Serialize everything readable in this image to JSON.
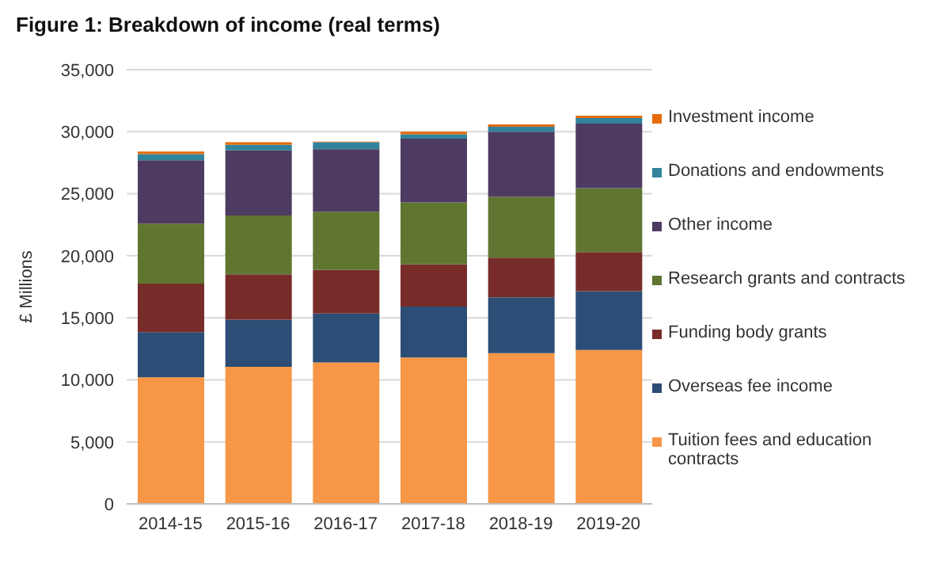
{
  "chart_data": {
    "type": "bar",
    "title": "Figure 1: Breakdown of income (real terms)",
    "ylabel": "£ Millions",
    "categories": [
      "2014-15",
      "2015-16",
      "2016-17",
      "2017-18",
      "2018-19",
      "2019-20"
    ],
    "stacked": true,
    "ylim": [
      0,
      35000
    ],
    "yticks": [
      {
        "value": 0,
        "label": "0"
      },
      {
        "value": 5000,
        "label": "5,000"
      },
      {
        "value": 10000,
        "label": "10,000"
      },
      {
        "value": 15000,
        "label": "15,000"
      },
      {
        "value": 20000,
        "label": "20,000"
      },
      {
        "value": 25000,
        "label": "25,000"
      },
      {
        "value": 30000,
        "label": "30,000"
      },
      {
        "value": 35000,
        "label": "35,000"
      }
    ],
    "grid": "y",
    "legend": "right",
    "series": [
      {
        "name": "Tuition fees and education contracts",
        "color": "#f79646",
        "values": [
          10200,
          11050,
          11400,
          11800,
          12150,
          12400
        ]
      },
      {
        "name": "Overseas fee income",
        "color": "#2c4d75",
        "values": [
          3650,
          3800,
          3950,
          4100,
          4500,
          4750
        ]
      },
      {
        "name": "Funding body grants",
        "color": "#772c2a",
        "values": [
          3900,
          3650,
          3500,
          3400,
          3200,
          3150
        ]
      },
      {
        "name": "Research grants and contracts",
        "color": "#5f7530",
        "values": [
          4850,
          4750,
          4700,
          5000,
          4900,
          5150
        ]
      },
      {
        "name": "Other income",
        "color": "#4d3b62",
        "values": [
          5100,
          5250,
          5050,
          5150,
          5250,
          5200
        ]
      },
      {
        "name": "Donations and endowments",
        "color": "#31849b",
        "values": [
          500,
          450,
          550,
          350,
          400,
          450
        ]
      },
      {
        "name": "Investment income",
        "color": "#e46c0a",
        "values": [
          200,
          200,
          50,
          200,
          200,
          200
        ]
      }
    ]
  }
}
